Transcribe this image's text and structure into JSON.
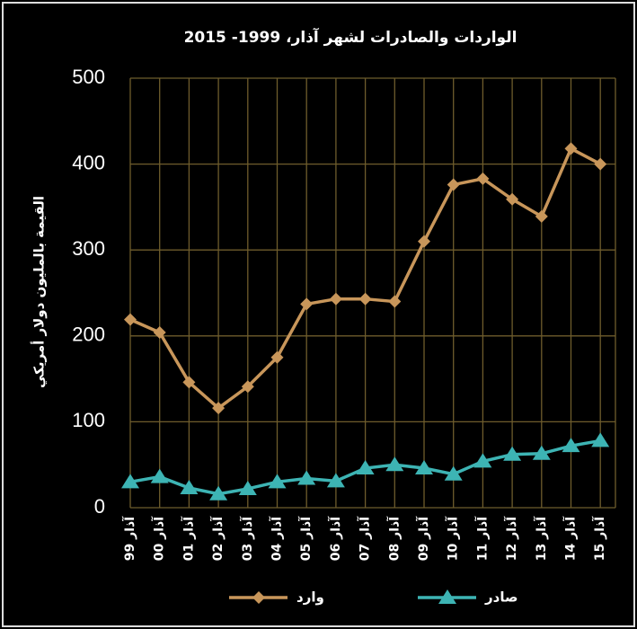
{
  "chart_data": {
    "type": "line",
    "title": "الواردات والصادرات لشهر آذار، 1999- 2015",
    "ylabel": "القيمة بالمليون دولار أمريكي",
    "categories": [
      "آذار 99",
      "آذار 00",
      "آذار 01",
      "آذار 02",
      "آذار 03",
      "آذار 04",
      "آذار 05",
      "آذار 06",
      "آذار 07",
      "آذار 08",
      "آذار 09",
      "آذار 10",
      "آذار 11",
      "آذار 12",
      "آذار 13",
      "آذار 14",
      "آذار 15"
    ],
    "series": [
      {
        "name": "وارد",
        "color": "#c8965a",
        "marker": "diamond",
        "values": [
          219,
          204,
          146,
          116,
          141,
          175,
          237,
          243,
          243,
          240,
          310,
          376,
          383,
          359,
          339,
          418,
          400
        ]
      },
      {
        "name": "صادر",
        "color": "#3db4b4",
        "marker": "triangle",
        "values": [
          30,
          36,
          23,
          16,
          22,
          30,
          34,
          31,
          46,
          50,
          46,
          39,
          54,
          62,
          63,
          72,
          78
        ]
      }
    ],
    "ylim": [
      0,
      500
    ],
    "yticks": [
      0,
      100,
      200,
      300,
      400,
      500
    ],
    "grid": true,
    "grid_color": "#6e5c2c",
    "legend": "bottom"
  }
}
